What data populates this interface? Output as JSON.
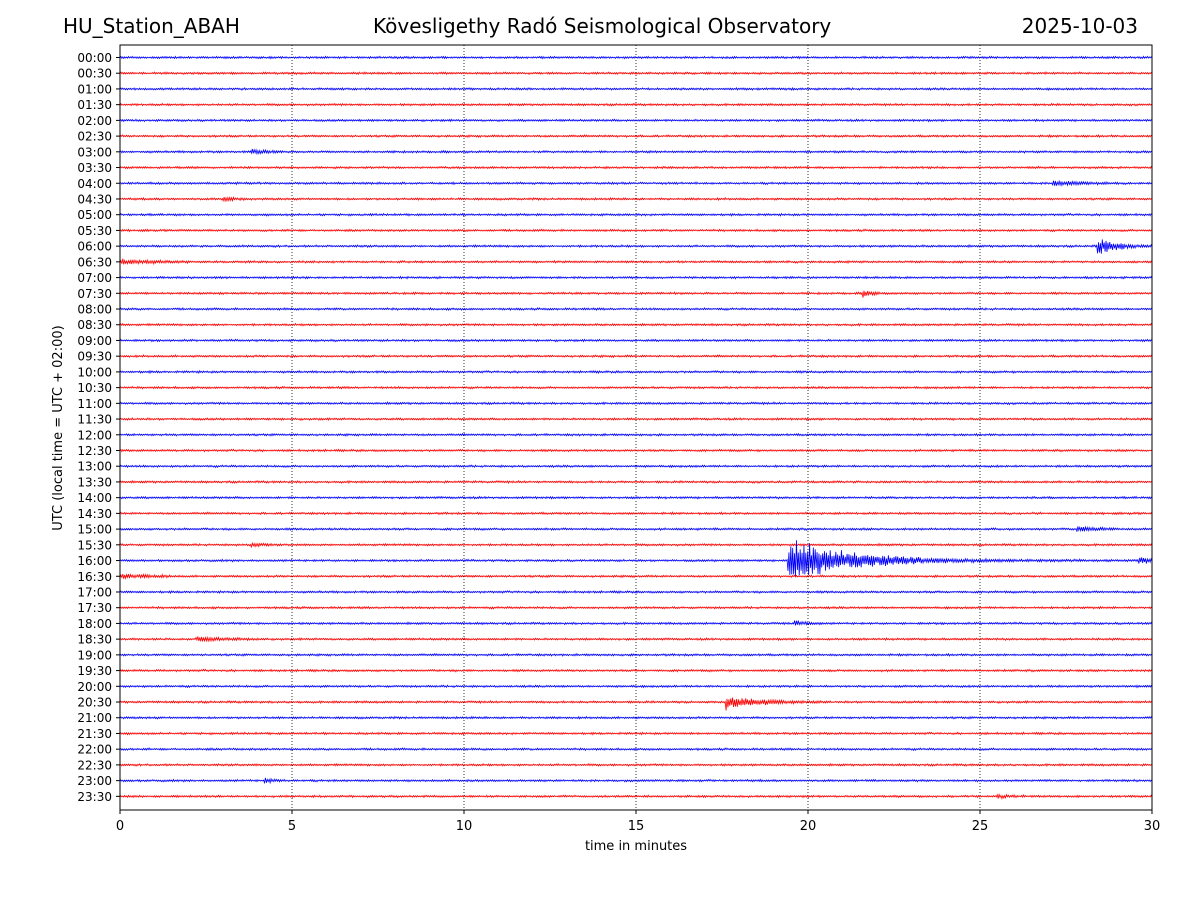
{
  "header": {
    "station": "HU_Station_ABAH",
    "observatory": "Kövesligethy Radó Seismological Observatory",
    "date": "2025-10-03"
  },
  "chart_data": {
    "type": "line",
    "title": "Kövesligethy Radó Seismological Observatory",
    "xlabel": "time in minutes",
    "ylabel": "UTC (local time = UTC + 02:00)",
    "xlim": [
      0,
      30
    ],
    "x_ticks": [
      "0",
      "5",
      "10",
      "15",
      "20",
      "25",
      "30"
    ],
    "x_tick_values": [
      0,
      5,
      10,
      15,
      20,
      25,
      30
    ],
    "grid": "vertical dotted at each x tick",
    "colors": {
      "even_rows": "#0000ff",
      "odd_rows": "#ff0000",
      "grid": "#000000"
    },
    "rows": [
      "00:00",
      "00:30",
      "01:00",
      "01:30",
      "02:00",
      "02:30",
      "03:00",
      "03:30",
      "04:00",
      "04:30",
      "05:00",
      "05:30",
      "06:00",
      "06:30",
      "07:00",
      "07:30",
      "08:00",
      "08:30",
      "09:00",
      "09:30",
      "10:00",
      "10:30",
      "11:00",
      "11:30",
      "12:00",
      "12:30",
      "13:00",
      "13:30",
      "14:00",
      "14:30",
      "15:00",
      "15:30",
      "16:00",
      "16:30",
      "17:00",
      "17:30",
      "18:00",
      "18:30",
      "19:00",
      "19:30",
      "20:00",
      "20:30",
      "21:00",
      "21:30",
      "22:00",
      "22:30",
      "23:00",
      "23:30"
    ],
    "noise_level": 1.0,
    "events": [
      {
        "row": "03:00",
        "start_min": 3.8,
        "duration_min": 1.0,
        "amplitude": 2.5,
        "decay": 0.5
      },
      {
        "row": "04:00",
        "start_min": 27.1,
        "duration_min": 2.0,
        "amplitude": 3.2,
        "decay": 0.7
      },
      {
        "row": "04:30",
        "start_min": 3.0,
        "duration_min": 0.6,
        "amplitude": 2.6,
        "decay": 0.3
      },
      {
        "row": "06:00",
        "start_min": 28.4,
        "duration_min": 1.6,
        "amplitude": 9.0,
        "decay": 0.6
      },
      {
        "row": "06:30",
        "start_min": 0.0,
        "duration_min": 2.0,
        "amplitude": 2.4,
        "decay": 1.0
      },
      {
        "row": "07:30",
        "start_min": 21.6,
        "duration_min": 0.5,
        "amplitude": 4.0,
        "decay": 0.2
      },
      {
        "row": "15:00",
        "start_min": 27.8,
        "duration_min": 1.2,
        "amplitude": 4.0,
        "decay": 0.5
      },
      {
        "row": "15:30",
        "start_min": 3.8,
        "duration_min": 0.6,
        "amplitude": 2.2,
        "decay": 0.3
      },
      {
        "row": "16:00",
        "start_min": 19.4,
        "duration_min": 10.6,
        "amplitude": 26.0,
        "decay": 1.8
      },
      {
        "row": "16:00",
        "start_min": 29.6,
        "duration_min": 0.4,
        "amplitude": 6.0,
        "decay": 0.3
      },
      {
        "row": "16:30",
        "start_min": 0.0,
        "duration_min": 1.5,
        "amplitude": 2.6,
        "decay": 0.8
      },
      {
        "row": "18:00",
        "start_min": 19.6,
        "duration_min": 0.8,
        "amplitude": 3.0,
        "decay": 0.4
      },
      {
        "row": "18:30",
        "start_min": 2.2,
        "duration_min": 2.0,
        "amplitude": 2.2,
        "decay": 0.8
      },
      {
        "row": "20:30",
        "start_min": 17.6,
        "duration_min": 3.0,
        "amplitude": 8.0,
        "decay": 0.9
      },
      {
        "row": "23:00",
        "start_min": 4.2,
        "duration_min": 0.6,
        "amplitude": 2.8,
        "decay": 0.3
      },
      {
        "row": "23:30",
        "start_min": 25.5,
        "duration_min": 0.8,
        "amplitude": 1.6,
        "decay": 0.4
      }
    ]
  }
}
